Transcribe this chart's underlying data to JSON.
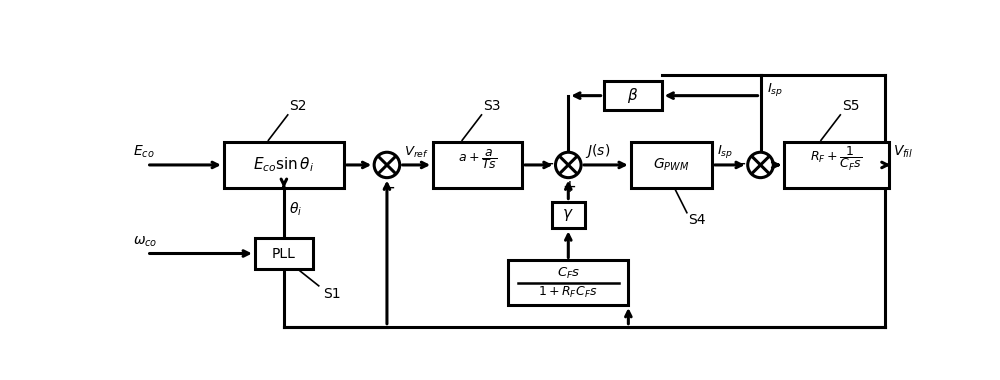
{
  "bg_color": "#ffffff",
  "lw": 2.2,
  "blw": 2.2,
  "figsize": [
    10.0,
    3.8
  ],
  "dpi": 100,
  "xlim": [
    0,
    10
  ],
  "ylim": [
    0,
    3.8
  ]
}
